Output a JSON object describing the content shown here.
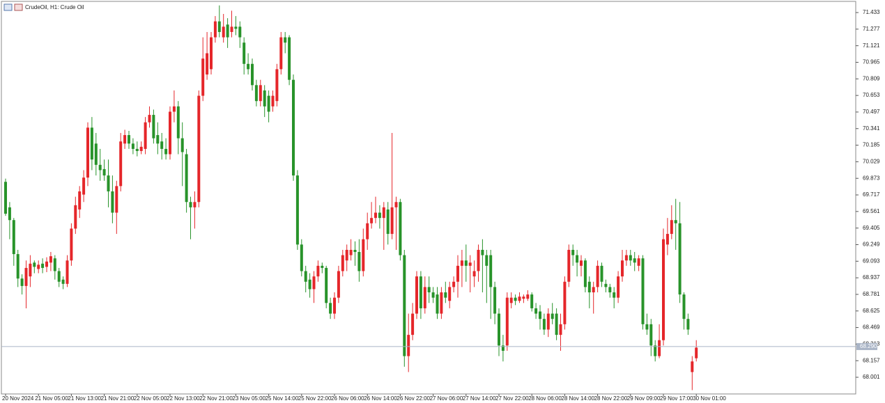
{
  "chart_data": {
    "type": "candlestick",
    "title": "CrudeOil, H1: Crude Oil",
    "categories": [
      "20 Nov 2024",
      null,
      null,
      null,
      null,
      null,
      null,
      null,
      "21 Nov 05:00",
      null,
      null,
      null,
      null,
      null,
      null,
      null,
      "21 Nov 13:00",
      null,
      null,
      null,
      null,
      null,
      null,
      null,
      "21 Nov 21:00",
      null,
      null,
      null,
      null,
      null,
      null,
      null,
      "22 Nov 05:00",
      null,
      null,
      null,
      null,
      null,
      null,
      null,
      "22 Nov 13:00",
      null,
      null,
      null,
      null,
      null,
      null,
      null,
      "22 Nov 21:00",
      null,
      null,
      null,
      null,
      null,
      null,
      null,
      "23 Nov 05:00",
      null,
      null,
      null,
      null,
      null,
      null,
      null,
      "25 Nov 14:00",
      null,
      null,
      null,
      null,
      null,
      null,
      null,
      "25 Nov 22:00",
      null,
      null,
      null,
      null,
      null,
      null,
      null,
      "26 Nov 06:00",
      null,
      null,
      null,
      null,
      null,
      null,
      null,
      "26 Nov 14:00",
      null,
      null,
      null,
      null,
      null,
      null,
      null,
      "26 Nov 22:00",
      null,
      null,
      null,
      null,
      null,
      null,
      null,
      "27 Nov 06:00",
      null,
      null,
      null,
      null,
      null,
      null,
      null,
      "27 Nov 14:00",
      null,
      null,
      null,
      null,
      null,
      null,
      null,
      "27 Nov 22:00",
      null,
      null,
      null,
      null,
      null,
      null,
      null,
      "28 Nov 06:00",
      null,
      null,
      null,
      null,
      null,
      null,
      null,
      "28 Nov 14:00",
      null,
      null,
      null,
      null,
      null,
      null,
      null,
      "28 Nov 22:00",
      null,
      null,
      null,
      null,
      null,
      null,
      null,
      "29 Nov 09:00",
      null,
      null,
      null,
      null,
      null,
      null,
      null,
      "29 Nov 17:00",
      null,
      null,
      null,
      null,
      null,
      null,
      null,
      "30 Nov 01:00"
    ],
    "open": [
      69.84,
      69.6,
      69.48,
      69.16,
      68.93,
      68.86,
      68.95,
      69.08,
      69.02,
      69.07,
      69.04,
      69.08,
      69.12,
      69.0,
      68.92,
      68.88,
      69.1,
      69.4,
      69.58,
      69.72,
      69.88,
      70.35,
      70.2,
      70.0,
      69.96,
      69.9,
      69.75,
      69.55,
      69.8,
      70.2,
      70.28,
      70.2,
      70.15,
      70.13,
      70.15,
      70.4,
      70.47,
      70.28,
      70.22,
      70.15,
      70.1,
      70.5,
      70.55,
      70.25,
      70.1,
      69.65,
      69.6,
      69.65,
      70.65,
      70.85,
      70.9,
      71.2,
      71.35,
      71.2,
      71.32,
      71.25,
      71.3,
      71.3,
      71.15,
      70.95,
      70.95,
      70.75,
      70.6,
      70.7,
      70.65,
      70.55,
      70.6,
      70.9,
      71.2,
      71.2,
      70.8,
      69.9,
      69.25,
      69.0,
      68.92,
      68.83,
      68.95,
      69.05,
      69.03,
      68.7,
      68.6,
      68.75,
      69.0,
      69.1,
      69.15,
      69.2,
      69.18,
      69.0,
      69.3,
      69.45,
      69.5,
      69.55,
      69.5,
      69.58,
      69.35,
      69.6,
      69.65,
      69.15,
      68.2,
      68.4,
      68.6,
      68.95,
      68.65,
      68.85,
      68.8,
      68.78,
      68.6,
      68.8,
      68.72,
      68.85,
      68.9,
      69.05,
      69.1,
      69.05,
      68.95,
      69.0,
      69.2,
      69.15,
      69.15,
      68.85,
      68.6,
      68.3,
      68.3,
      68.7,
      68.75,
      68.72,
      68.74,
      68.74,
      68.78,
      68.65,
      68.62,
      68.55,
      68.45,
      68.6,
      68.6,
      68.4,
      68.5,
      68.9,
      69.2,
      69.15,
      69.05,
      69.1,
      68.9,
      68.8,
      68.85,
      69.05,
      68.88,
      68.85,
      68.8,
      68.75,
      68.95,
      69.1,
      69.15,
      69.12,
      69.05,
      69.12,
      68.5,
      68.5,
      68.3,
      68.2,
      68.35,
      69.25,
      69.35,
      69.48,
      69.45,
      68.78,
      68.55,
      68.05,
      68.18
    ],
    "high": [
      69.87,
      69.65,
      69.5,
      69.2,
      68.97,
      69.1,
      69.15,
      69.1,
      69.1,
      69.12,
      69.13,
      69.18,
      69.15,
      69.03,
      68.95,
      69.15,
      69.45,
      69.7,
      69.8,
      69.95,
      70.4,
      70.45,
      70.3,
      70.15,
      70.05,
      70.05,
      69.9,
      69.85,
      70.3,
      70.33,
      70.32,
      70.25,
      70.22,
      70.22,
      70.45,
      70.55,
      70.52,
      70.4,
      70.3,
      70.25,
      70.55,
      70.7,
      70.6,
      70.4,
      70.15,
      69.7,
      69.75,
      70.7,
      71.2,
      71.25,
      71.25,
      71.4,
      71.5,
      71.42,
      71.38,
      71.45,
      71.4,
      71.35,
      71.2,
      71.05,
      71.0,
      70.8,
      70.8,
      70.75,
      70.7,
      70.7,
      70.95,
      71.25,
      71.25,
      71.22,
      70.85,
      69.95,
      69.3,
      69.05,
      68.98,
      69.0,
      69.1,
      69.08,
      69.05,
      68.75,
      68.8,
      69.05,
      69.2,
      69.25,
      69.3,
      69.28,
      69.3,
      69.4,
      69.55,
      69.65,
      69.7,
      69.62,
      69.65,
      69.65,
      70.3,
      69.7,
      69.68,
      69.2,
      68.6,
      68.7,
      69.0,
      69.0,
      68.95,
      68.95,
      68.85,
      68.85,
      68.85,
      68.9,
      68.9,
      68.95,
      69.15,
      69.2,
      69.25,
      69.15,
      69.1,
      69.25,
      69.3,
      69.2,
      69.2,
      68.9,
      68.65,
      68.4,
      68.8,
      68.8,
      68.78,
      68.8,
      68.78,
      68.82,
      68.8,
      68.7,
      68.68,
      68.6,
      68.65,
      68.7,
      68.65,
      68.6,
      68.95,
      69.25,
      69.25,
      69.2,
      69.15,
      69.12,
      68.95,
      68.9,
      69.1,
      69.08,
      68.92,
      68.88,
      68.85,
      69.0,
      69.2,
      69.2,
      69.2,
      69.18,
      69.15,
      69.15,
      68.6,
      68.55,
      68.35,
      68.5,
      69.4,
      69.5,
      69.62,
      69.68,
      69.65,
      68.8,
      68.6,
      68.2,
      68.35
    ],
    "low": [
      69.52,
      69.3,
      69.05,
      68.85,
      68.78,
      68.65,
      68.85,
      68.98,
      68.98,
      68.98,
      68.99,
      69.0,
      68.92,
      68.85,
      68.83,
      68.85,
      69.05,
      69.35,
      69.5,
      69.65,
      69.8,
      69.95,
      69.9,
      69.85,
      69.85,
      69.6,
      69.45,
      69.35,
      69.75,
      70.15,
      70.15,
      70.1,
      70.08,
      70.1,
      70.1,
      70.35,
      70.2,
      70.1,
      70.05,
      70.05,
      70.05,
      70.4,
      70.1,
      69.8,
      69.55,
      69.3,
      69.4,
      69.6,
      70.6,
      70.8,
      70.85,
      71.15,
      71.2,
      71.15,
      71.1,
      71.2,
      71.22,
      71.1,
      70.85,
      70.85,
      70.7,
      70.55,
      70.55,
      70.45,
      70.4,
      70.5,
      70.55,
      70.85,
      71.05,
      70.75,
      69.85,
      69.2,
      68.95,
      68.8,
      68.75,
      68.7,
      68.9,
      68.98,
      68.65,
      68.55,
      68.55,
      68.7,
      68.95,
      69.0,
      69.1,
      69.05,
      68.9,
      68.95,
      69.2,
      69.4,
      69.45,
      69.4,
      69.2,
      69.25,
      69.3,
      69.2,
      69.1,
      68.1,
      68.05,
      68.35,
      68.55,
      68.55,
      68.6,
      68.7,
      68.7,
      68.55,
      68.55,
      68.7,
      68.65,
      68.8,
      68.75,
      68.85,
      68.9,
      68.8,
      68.85,
      68.9,
      68.8,
      68.7,
      68.55,
      68.5,
      68.2,
      68.15,
      68.25,
      68.65,
      68.68,
      68.7,
      68.7,
      68.72,
      68.62,
      68.55,
      68.45,
      68.4,
      68.38,
      68.5,
      68.35,
      68.25,
      68.45,
      68.85,
      69.05,
      68.95,
      68.95,
      68.8,
      68.65,
      68.6,
      68.8,
      68.85,
      68.8,
      68.75,
      68.65,
      68.7,
      68.9,
      69.05,
      69.05,
      69.0,
      69.0,
      68.45,
      68.4,
      68.2,
      68.15,
      68.18,
      68.3,
      69.15,
      69.3,
      69.2,
      68.7,
      68.45,
      68.4,
      67.88,
      68.15
    ],
    "close": [
      69.54,
      69.48,
      69.16,
      68.93,
      68.86,
      69.03,
      69.07,
      69.04,
      69.06,
      69.03,
      69.09,
      69.14,
      69.0,
      68.9,
      68.88,
      69.1,
      69.4,
      69.62,
      69.75,
      69.88,
      70.35,
      70.05,
      70.0,
      69.95,
      69.9,
      69.75,
      69.55,
      69.8,
      70.22,
      70.28,
      70.2,
      70.15,
      70.13,
      70.17,
      70.4,
      70.47,
      70.25,
      70.2,
      70.15,
      70.1,
      70.5,
      70.55,
      70.25,
      70.12,
      69.65,
      69.6,
      69.65,
      70.65,
      71.0,
      71.05,
      71.2,
      71.35,
      71.25,
      71.3,
      71.2,
      71.3,
      71.28,
      71.2,
      70.95,
      70.9,
      70.75,
      70.6,
      70.75,
      70.55,
      70.5,
      70.65,
      70.9,
      71.2,
      71.15,
      70.8,
      69.9,
      69.25,
      69.0,
      68.9,
      68.83,
      68.95,
      69.05,
      69.03,
      68.7,
      68.6,
      68.75,
      69.0,
      69.15,
      69.2,
      69.2,
      69.18,
      69.0,
      69.3,
      69.45,
      69.5,
      69.55,
      69.5,
      69.6,
      69.35,
      69.6,
      69.65,
      69.15,
      68.2,
      68.4,
      68.6,
      68.95,
      68.65,
      68.85,
      68.8,
      68.75,
      68.6,
      68.8,
      68.75,
      68.85,
      68.9,
      69.05,
      69.1,
      69.05,
      69.08,
      69.0,
      69.2,
      69.15,
      69.05,
      68.85,
      68.6,
      68.3,
      68.25,
      68.75,
      68.75,
      68.72,
      68.76,
      68.76,
      68.78,
      68.65,
      68.6,
      68.55,
      68.45,
      68.6,
      68.55,
      68.4,
      68.5,
      68.9,
      69.2,
      69.15,
      69.08,
      69.1,
      68.85,
      68.8,
      68.85,
      69.05,
      68.9,
      68.85,
      68.8,
      68.75,
      68.95,
      69.1,
      69.15,
      69.1,
      69.08,
      69.12,
      68.5,
      68.45,
      68.3,
      68.2,
      68.35,
      69.3,
      69.35,
      69.48,
      69.45,
      68.78,
      68.55,
      68.45,
      68.15,
      68.28
    ],
    "up_color": "#e5262a",
    "down_color": "#28932a",
    "ylim": [
      67.844,
      71.538
    ],
    "yticks": [
      71.433,
      71.277,
      71.121,
      70.965,
      70.809,
      70.653,
      70.497,
      70.341,
      70.185,
      70.029,
      69.873,
      69.717,
      69.561,
      69.405,
      69.249,
      69.093,
      68.937,
      68.781,
      68.625,
      68.469,
      68.313,
      68.157,
      68.001
    ],
    "current_price": {
      "value": 68.29,
      "label": "68.290"
    }
  }
}
